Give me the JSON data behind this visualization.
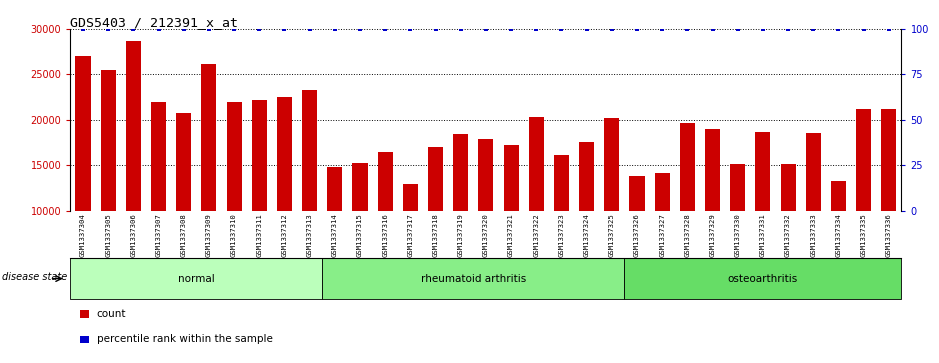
{
  "title": "GDS5403 / 212391_x_at",
  "samples": [
    "GSM1337304",
    "GSM1337305",
    "GSM1337306",
    "GSM1337307",
    "GSM1337308",
    "GSM1337309",
    "GSM1337310",
    "GSM1337311",
    "GSM1337312",
    "GSM1337313",
    "GSM1337314",
    "GSM1337315",
    "GSM1337316",
    "GSM1337317",
    "GSM1337318",
    "GSM1337319",
    "GSM1337320",
    "GSM1337321",
    "GSM1337322",
    "GSM1337323",
    "GSM1337324",
    "GSM1337325",
    "GSM1337326",
    "GSM1337327",
    "GSM1337328",
    "GSM1337329",
    "GSM1337330",
    "GSM1337331",
    "GSM1337332",
    "GSM1337333",
    "GSM1337334",
    "GSM1337335",
    "GSM1337336"
  ],
  "counts": [
    27000,
    25500,
    28700,
    22000,
    20800,
    26100,
    22000,
    22200,
    22500,
    23300,
    14800,
    15200,
    16400,
    12900,
    17000,
    18400,
    17900,
    17200,
    20300,
    16100,
    17500,
    20200,
    13800,
    14100,
    19700,
    19000,
    15100,
    18600,
    15100,
    18500,
    13300,
    21200,
    21200
  ],
  "percentile_ranks": [
    100,
    100,
    100,
    100,
    100,
    100,
    100,
    100,
    100,
    100,
    100,
    100,
    100,
    100,
    100,
    100,
    100,
    100,
    100,
    100,
    100,
    100,
    100,
    100,
    100,
    100,
    100,
    100,
    100,
    100,
    100,
    100,
    100
  ],
  "bar_color": "#cc0000",
  "percentile_color": "#0000cc",
  "groups": [
    {
      "label": "normal",
      "start": 0,
      "end": 10,
      "color": "#bbffbb"
    },
    {
      "label": "rheumatoid arthritis",
      "start": 10,
      "end": 22,
      "color": "#88ee88"
    },
    {
      "label": "osteoarthritis",
      "start": 22,
      "end": 33,
      "color": "#66dd66"
    }
  ],
  "ylim_left": [
    10000,
    30000
  ],
  "yticks_left": [
    10000,
    15000,
    20000,
    25000,
    30000
  ],
  "ylim_right": [
    0,
    100
  ],
  "yticks_right": [
    0,
    25,
    50,
    75,
    100
  ],
  "ylabel_left_color": "#cc0000",
  "ylabel_right_color": "#0000cc",
  "disease_state_label": "disease state",
  "legend_count_label": "count",
  "legend_percentile_label": "percentile rank within the sample",
  "background_color": "#ffffff",
  "xticklabel_bg": "#d8d8d8"
}
